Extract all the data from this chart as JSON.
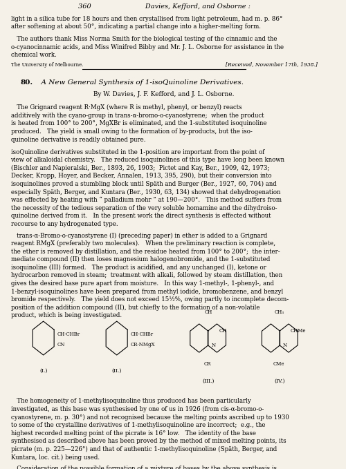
{
  "background_color": "#f5f0e8",
  "page_width": 5.0,
  "page_height": 6.79,
  "dpi": 100,
  "header_text": "360                         Davies, Kefford, and Osborne :",
  "line1": "light in a silica tube for 18 hours and then crystallised from light petroleum, had m. p. 86°",
  "line2": "after softening at about 50°, indicating a partial change into a higher-melting form.",
  "line3": "   The authors thank Miss Norma Smith for the biological testing of the cinnamic and the",
  "line4": "o-cyanocinnamic acids, and Miss Winifred Bibby and Mr. J. L. Osborne for assistance in the",
  "line5": "chemical work.",
  "institution": "The University of Melbourne.",
  "received": "[Received, November 17th, 1938.]",
  "article_num": "80.",
  "article_title": "  A New General Synthesis of 1-isoQuinoline Derivatives.",
  "byline": "By W. Davies, J. F. Kefford, and J. L. Osborne.",
  "abstract": "   The Grignard reagent R·MgX (where R is methyl, phenyl, or benzyl) reacts\nadditively with the cyano-group in trans-α-bromo-o-cyanostyrene;  when the product\nis heated from 100° to 200°, MgXBr is eliminated, and the 1-substituted isoquinoline\nproduced.   The yield is small owing to the formation of by-products, but the iso-\nquinoline derivative is readily obtained pure.",
  "body1": "isoQuinoline derivatives substituted in the 1-position are important from the point of\nview of alkaloidal chemistry.   The reduced isoquinolines of this type have long been known\n(Bischler and Napieralski, Ber., 1893, 26, 1903;  Pictet and Kay, Ber., 1909, 42, 1973;\nDecker, Kropp, Hoyer, and Becker, Annalen, 1913, 395, 290), but their conversion into\nisoquinolines proved a stumbling block until Späth and Burger (Ber., 1927, 60, 704) and\nespecially Späth, Berger, and Kuntara (Ber., 1930, 63, 134) showed that dehydrogenation\nwas effected by heating with “ palladium mohr ” at 190—200°.   This method suffers from\nthe necessity of the tedious separation of the very soluble homamine and the dihydroiso-\nquinoline derived from it.   In the present work the direct synthesis is effected without\nrecourse to any hydrogenated type.",
  "body2": "   trans-α-Bromo-o-cyanostyrene (I) (preceding paper) in ether is added to a Grignard\nreagent RMgX (preferably two molecules).   When the preliminary reaction is complete,\nthe ether is removed by distillation, and the residue heated from 100° to 200°;  the inter-\nmediate compound (II) then loses magnesium halogenobromide, and the 1-substituted\nisoquinoline (III) formed.   The product is acidified, and any unchanged (I), ketone or\nhydrocarbon removed in steam;  treatment with alkali, followed by steam distillation, then\ngives the desired base pure apart from moisture.   In this way 1-methyl-, 1-phenyl-, and\n1-benzyl-isoquinolines have been prepared from methyl iodide, bromobenzene, and benzyl\nbromide respectively.   The yield does not exceed 15½%, owing partly to incomplete decom-\nposition of the addition compound (II), but chiefly to the formation of a non-volatile\nproduct, which is being investigated.",
  "body3": "   The homogeneity of 1-methylisoquinoline thus produced has been particularly\ninvestigated, as this base was synthesised by one of us in 1926 (from cis-α-bromo-o-\ncyanostyrene, m. p. 30°) and not recognised because the melting points ascribed up to 1930\nto some of the crystalline derivatives of 1-methylisoquinoline are incorrect;  e.g., the\nhighest recorded melting point of the picrate is 16° low.   The identity of the base\nsynthesised as described above has been proved by the method of mixed melting points, its\npicrate (m. p. 225—226°) and that of authentic 1-methylisoquinoline (Späth, Berger, and\nKuntara, loc. cit.) being used.",
  "body4": "   Consideration of the possible formation of a mixture of bases by the above synthesis is"
}
